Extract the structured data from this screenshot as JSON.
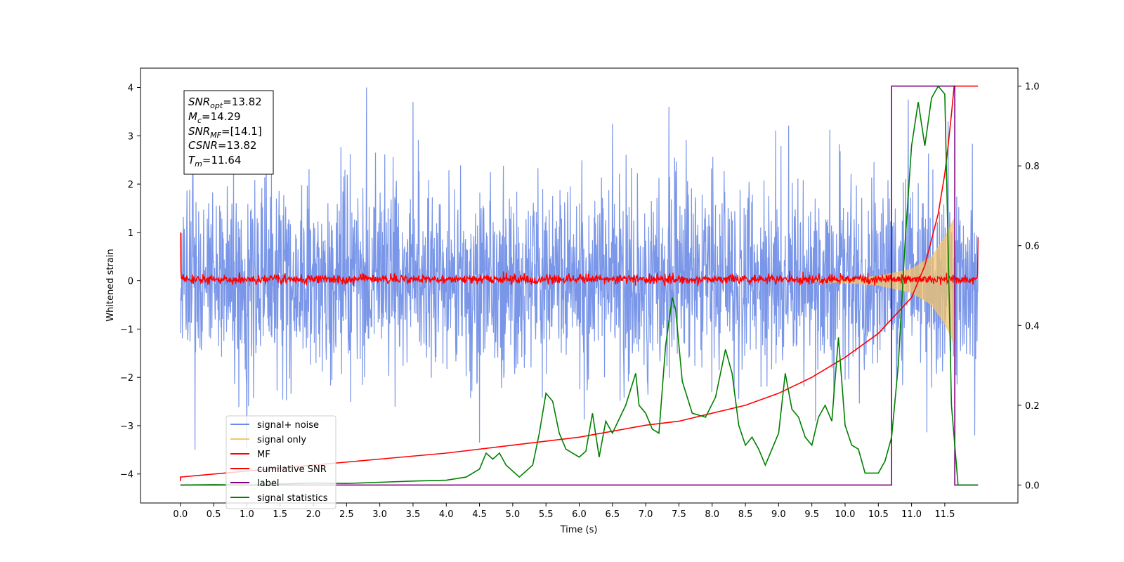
{
  "chart_data": {
    "type": "line",
    "xlabel": "Time (s)",
    "ylabel": "Whitened strain",
    "xlim": [
      -0.6,
      12.6
    ],
    "ylim": [
      -4.6,
      4.4
    ],
    "y2lim": [
      -0.045,
      1.045
    ],
    "xticks": [
      0.0,
      0.5,
      1.0,
      1.5,
      2.0,
      2.5,
      3.0,
      3.5,
      4.0,
      4.5,
      5.0,
      5.5,
      6.0,
      6.5,
      7.0,
      7.5,
      8.0,
      8.5,
      9.0,
      9.5,
      10.0,
      10.5,
      11.0,
      11.5
    ],
    "xtick_labels": [
      "0.0",
      "0.5",
      "1.0",
      "1.5",
      "2.0",
      "2.5",
      "3.0",
      "3.5",
      "4.0",
      "4.5",
      "5.0",
      "5.5",
      "6.0",
      "6.5",
      "7.0",
      "7.5",
      "8.0",
      "8.5",
      "9.0",
      "9.5",
      "10.0",
      "10.5",
      "11.0",
      "11.5"
    ],
    "yticks": [
      -4,
      -3,
      -2,
      -1,
      0,
      1,
      2,
      3,
      4
    ],
    "ytick_labels": [
      "−4",
      "−3",
      "−2",
      "−1",
      "0",
      "1",
      "2",
      "3",
      "4"
    ],
    "y2ticks": [
      0.0,
      0.2,
      0.4,
      0.6,
      0.8,
      1.0
    ],
    "y2tick_labels": [
      "0.0",
      "0.2",
      "0.4",
      "0.6",
      "0.8",
      "1.0"
    ],
    "legend_position": "lower-left",
    "info_box": {
      "lines": [
        {
          "sym": "SNR",
          "sub": "opt",
          "value": "=13.82"
        },
        {
          "sym": "M",
          "sub": "c",
          "value": "=14.29"
        },
        {
          "sym": "SNR",
          "sub": "MF",
          "value": "=[14.1]"
        },
        {
          "sym": "CSNR",
          "sub": "",
          "value": "=13.82"
        },
        {
          "sym": "T",
          "sub": "m",
          "value": "=11.64"
        }
      ]
    },
    "series": [
      {
        "name": "signal+ noise",
        "color": "#6b8be6",
        "axis": "left",
        "kind": "noise",
        "x_range": [
          0.0,
          12.0
        ],
        "sigma": 1.0,
        "peaks": [
          [
            2.8,
            4.0
          ],
          [
            3.5,
            3.7
          ],
          [
            6.5,
            3.25
          ],
          [
            7.35,
            3.6
          ],
          [
            10.95,
            3.75
          ],
          [
            11.55,
            3.3
          ],
          [
            0.22,
            -3.5
          ],
          [
            1.0,
            -3.45
          ],
          [
            4.5,
            -3.35
          ],
          [
            11.95,
            -3.2
          ]
        ]
      },
      {
        "name": "signal only",
        "color": "#f5c46b",
        "axis": "left",
        "kind": "chirp",
        "t_merge": 11.64,
        "envelope": [
          [
            9.5,
            0.02
          ],
          [
            10.0,
            0.05
          ],
          [
            10.5,
            0.1
          ],
          [
            11.0,
            0.25
          ],
          [
            11.3,
            0.5
          ],
          [
            11.5,
            0.9
          ],
          [
            11.64,
            1.3
          ]
        ]
      },
      {
        "name": "MF",
        "color": "#ff0000",
        "axis": "left",
        "kind": "mf_noise",
        "x_range": [
          0.0,
          12.0
        ],
        "start": 1.0,
        "end": 0.9,
        "sigma": 0.05
      },
      {
        "name": "cumilative SNR",
        "color": "#ff0000",
        "axis": "right",
        "x": [
          0.0,
          0.0,
          1.0,
          2.0,
          3.0,
          4.0,
          5.0,
          6.0,
          7.0,
          7.5,
          8.0,
          8.5,
          9.0,
          9.5,
          10.0,
          10.5,
          11.0,
          11.2,
          11.4,
          11.5,
          11.55,
          11.6,
          11.64,
          12.0
        ],
        "values": [
          0.01,
          0.02,
          0.035,
          0.05,
          0.065,
          0.08,
          0.1,
          0.12,
          0.15,
          0.16,
          0.18,
          0.2,
          0.23,
          0.27,
          0.32,
          0.38,
          0.47,
          0.55,
          0.68,
          0.78,
          0.85,
          0.93,
          1.0,
          1.0
        ]
      },
      {
        "name": "label",
        "color": "#800080",
        "axis": "right",
        "x": [
          0.0,
          10.7,
          10.7,
          11.65,
          11.65,
          12.0
        ],
        "values": [
          0.0,
          0.0,
          1.0,
          1.0,
          0.0,
          0.0
        ]
      },
      {
        "name": "signal statistics",
        "color": "#008000",
        "axis": "right",
        "x": [
          0.0,
          0.5,
          1.0,
          2.0,
          2.5,
          3.0,
          3.5,
          4.0,
          4.3,
          4.5,
          4.6,
          4.7,
          4.8,
          4.9,
          5.1,
          5.3,
          5.4,
          5.5,
          5.6,
          5.7,
          5.8,
          6.0,
          6.1,
          6.2,
          6.3,
          6.4,
          6.5,
          6.7,
          6.85,
          6.9,
          7.0,
          7.1,
          7.2,
          7.3,
          7.4,
          7.45,
          7.55,
          7.7,
          7.9,
          8.05,
          8.2,
          8.3,
          8.4,
          8.5,
          8.6,
          8.7,
          8.8,
          9.0,
          9.1,
          9.2,
          9.3,
          9.4,
          9.5,
          9.6,
          9.7,
          9.8,
          9.9,
          10.0,
          10.1,
          10.2,
          10.3,
          10.5,
          10.6,
          10.7,
          10.8,
          10.9,
          11.0,
          11.1,
          11.2,
          11.3,
          11.4,
          11.5,
          11.55,
          11.6,
          11.7,
          12.0
        ],
        "values": [
          0.0,
          0.001,
          0.0,
          0.005,
          0.004,
          0.007,
          0.01,
          0.012,
          0.02,
          0.04,
          0.08,
          0.065,
          0.08,
          0.05,
          0.02,
          0.05,
          0.13,
          0.23,
          0.21,
          0.13,
          0.09,
          0.07,
          0.085,
          0.18,
          0.07,
          0.16,
          0.13,
          0.2,
          0.28,
          0.2,
          0.18,
          0.14,
          0.13,
          0.35,
          0.47,
          0.44,
          0.26,
          0.18,
          0.17,
          0.22,
          0.34,
          0.28,
          0.15,
          0.1,
          0.12,
          0.09,
          0.05,
          0.13,
          0.28,
          0.19,
          0.17,
          0.12,
          0.1,
          0.17,
          0.2,
          0.16,
          0.37,
          0.15,
          0.1,
          0.09,
          0.03,
          0.03,
          0.06,
          0.12,
          0.3,
          0.6,
          0.85,
          0.96,
          0.85,
          0.97,
          1.0,
          0.98,
          0.6,
          0.2,
          0.0,
          0.0
        ]
      }
    ]
  }
}
